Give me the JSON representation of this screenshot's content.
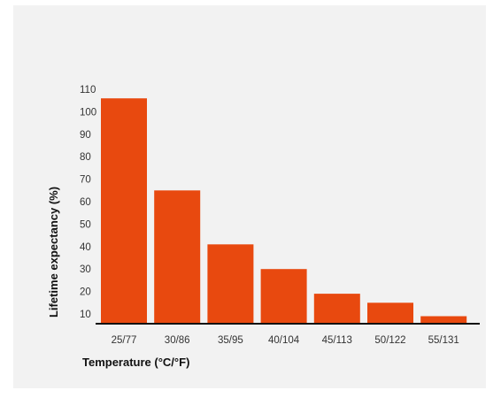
{
  "chart_data": {
    "type": "bar",
    "title": "",
    "categories": [
      "25/77",
      "30/86",
      "35/95",
      "40/104",
      "45/113",
      "50/122",
      "55/131"
    ],
    "values": [
      106,
      65,
      41,
      30,
      19,
      15,
      9
    ],
    "xlabel": "Temperature (°C/°F)",
    "ylabel": "Lifetime expectancy (%)",
    "yticks": [
      10,
      20,
      30,
      40,
      50,
      60,
      70,
      80,
      90,
      100,
      110
    ],
    "ylim": [
      5,
      110
    ],
    "grid": false,
    "bar_color": "#e8490f",
    "axis_color": "#111111",
    "background": "#f2f2f2"
  }
}
